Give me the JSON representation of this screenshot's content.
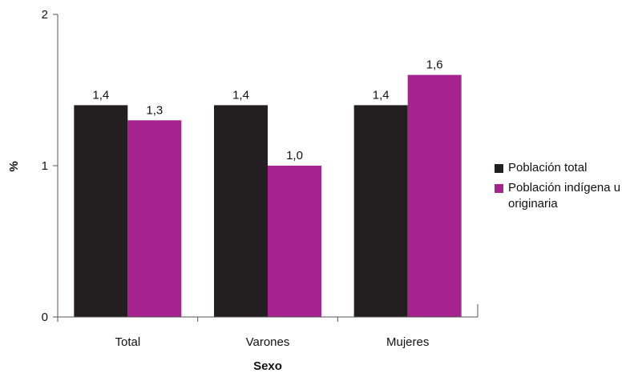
{
  "chart_data": {
    "type": "bar",
    "categories": [
      "Total",
      "Varones",
      "Mujeres"
    ],
    "series": [
      {
        "name": "Población total",
        "values": [
          1.4,
          1.4,
          1.4
        ],
        "labels": [
          "1,4",
          "1,4",
          "1,4"
        ],
        "color": "#231f20"
      },
      {
        "name": "Población indígena u originaria",
        "values": [
          1.3,
          1.0,
          1.6
        ],
        "labels": [
          "1,3",
          "1,0",
          "1,6"
        ],
        "color": "#a6228e"
      }
    ],
    "xlabel": "Sexo",
    "ylabel": "%",
    "ylim": [
      0,
      2
    ],
    "yticks": [
      0,
      1,
      2
    ],
    "ytick_labels": [
      "0",
      "1",
      "2"
    ],
    "grid": false,
    "legend_position": "right"
  }
}
